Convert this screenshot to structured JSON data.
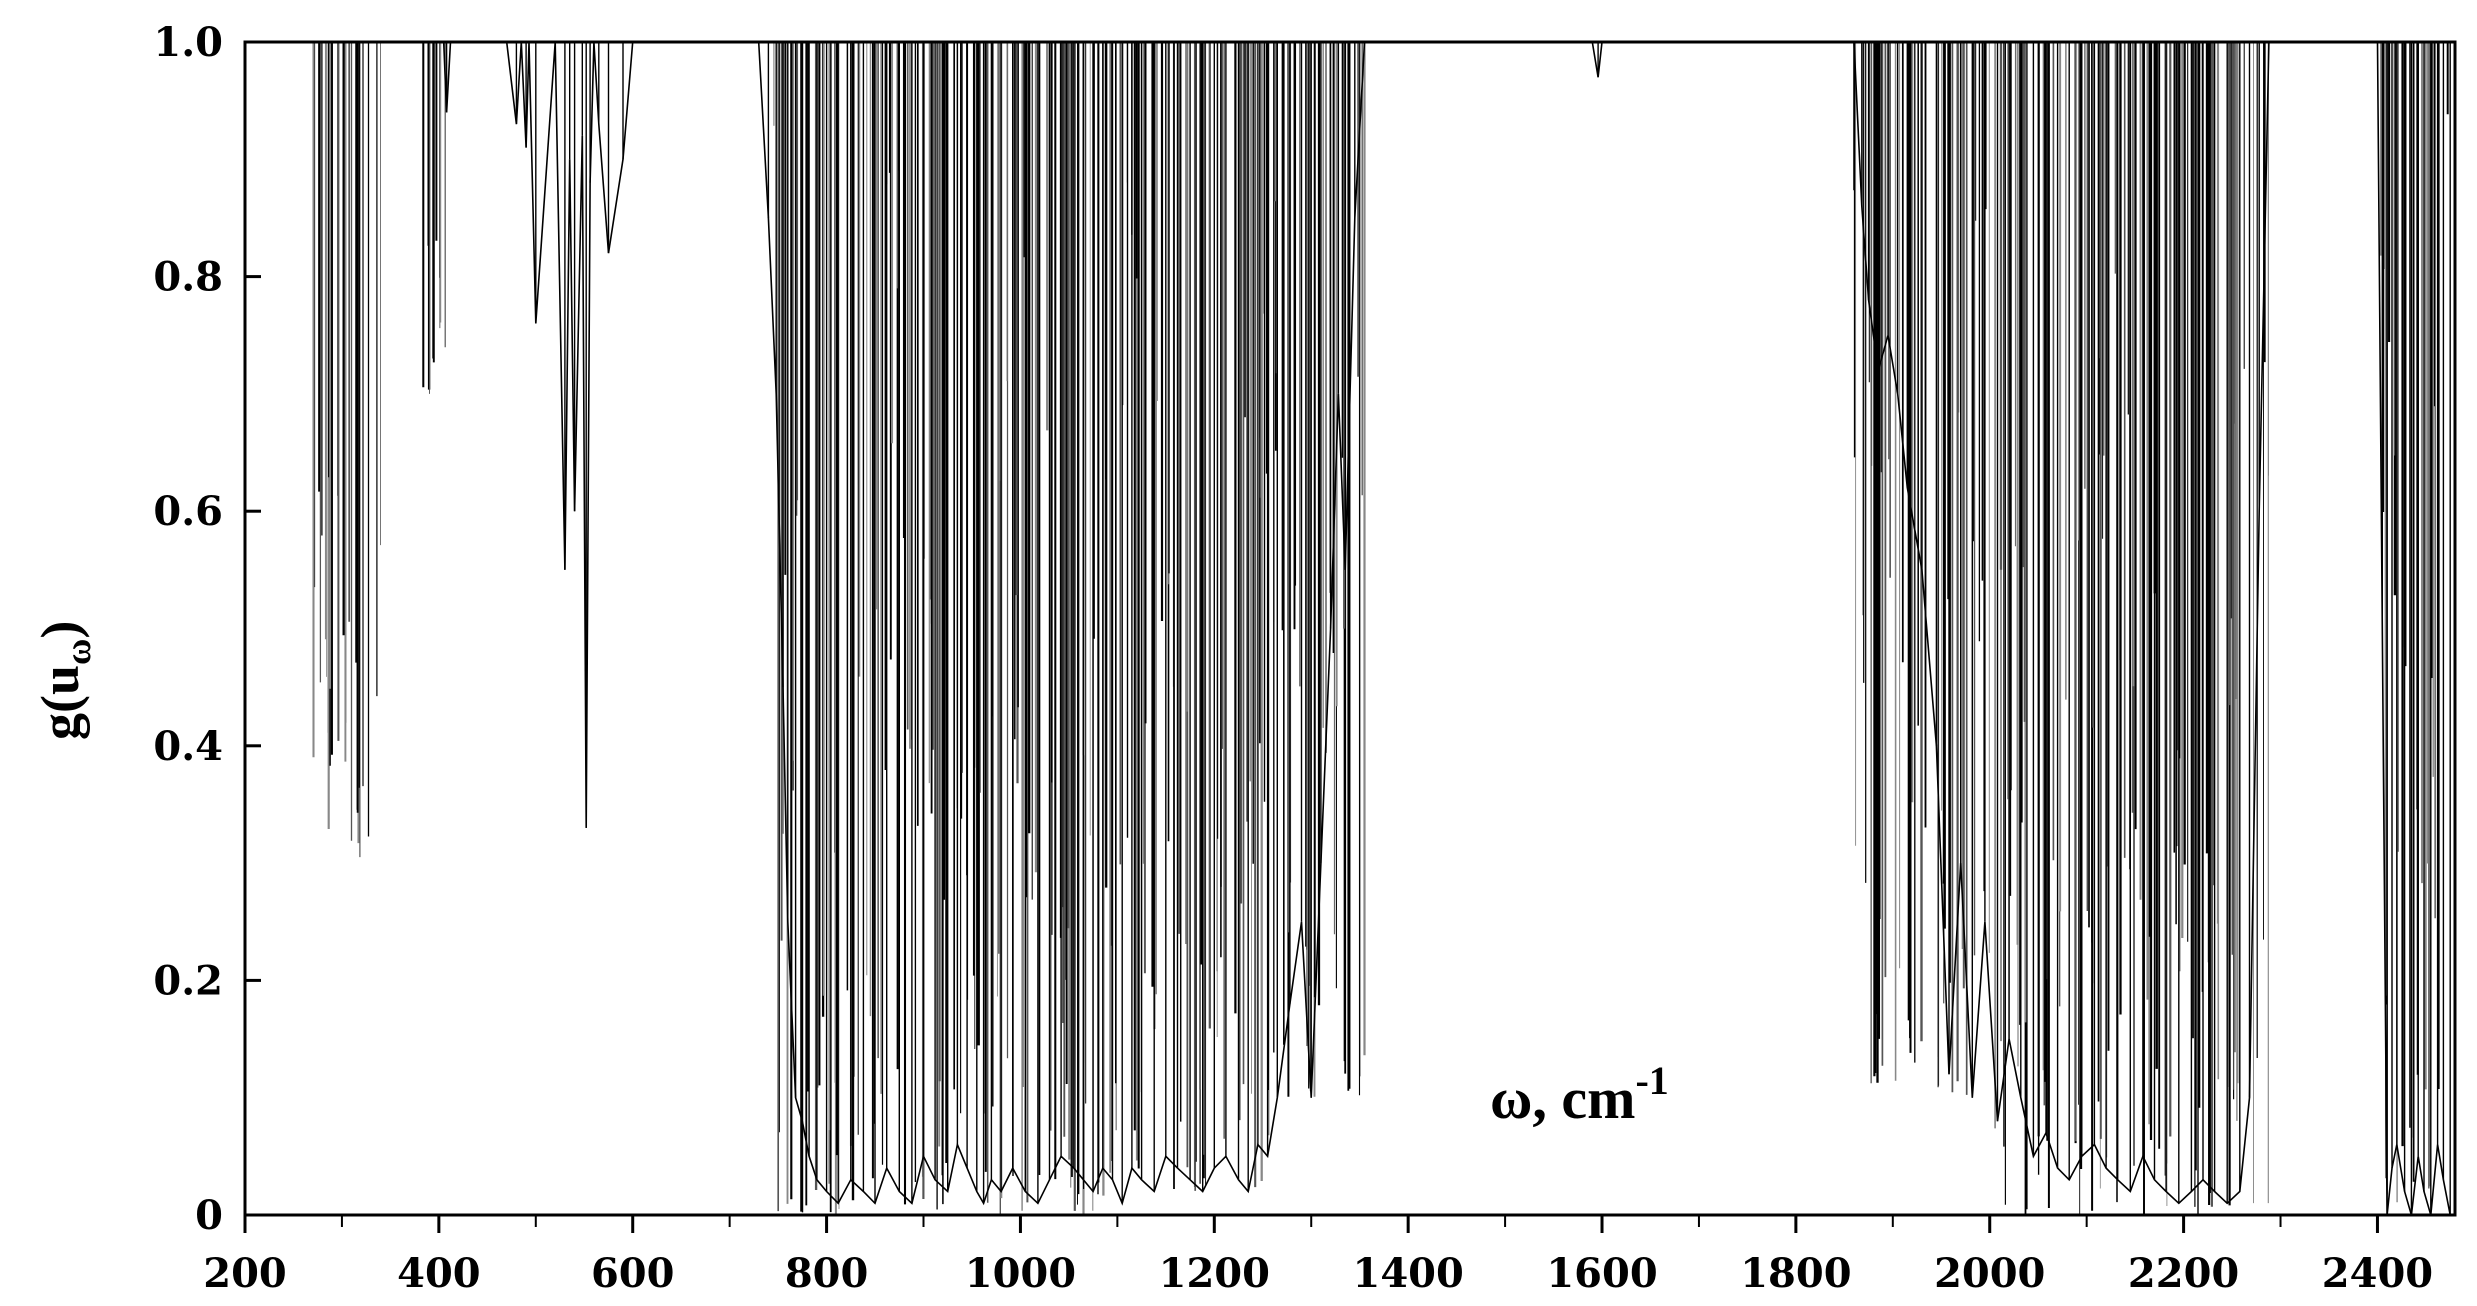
{
  "chart_data": {
    "type": "line",
    "title": "",
    "xlabel": "ω, cm",
    "xlabel_superscript": "-1",
    "ylabel_main": "g(u",
    "ylabel_sub": "ω",
    "ylabel_close": ")",
    "xlim": [
      200,
      2480
    ],
    "ylim": [
      0,
      1.0
    ],
    "x_ticks": [
      {
        "value": 200,
        "label": "200"
      },
      {
        "value": 400,
        "label": "400"
      },
      {
        "value": 600,
        "label": "600"
      },
      {
        "value": 800,
        "label": "800"
      },
      {
        "value": 1000,
        "label": "1000"
      },
      {
        "value": 1200,
        "label": "1200"
      },
      {
        "value": 1400,
        "label": "1400"
      },
      {
        "value": 1600,
        "label": "1600"
      },
      {
        "value": 1800,
        "label": "1800"
      },
      {
        "value": 2000,
        "label": "2000"
      },
      {
        "value": 2200,
        "label": "2200"
      },
      {
        "value": 2400,
        "label": "2400"
      }
    ],
    "x_minor_step": 100,
    "y_ticks": [
      {
        "value": 0,
        "label": "0"
      },
      {
        "value": 0.2,
        "label": "0.2"
      },
      {
        "value": 0.4,
        "label": "0.4"
      },
      {
        "value": 0.6,
        "label": "0.6"
      },
      {
        "value": 0.8,
        "label": "0.8"
      },
      {
        "value": 1.0,
        "label": "1.0"
      }
    ],
    "grid": false,
    "legend": "none",
    "colors": {
      "line": "#000000",
      "fill": "#000000",
      "axis": "#000000",
      "background": "#ffffff"
    },
    "series": [
      {
        "description_free": true,
        "x": [
          200,
          405,
          408,
          412,
          470,
          480,
          485,
          490,
          493,
          500,
          520,
          530,
          535,
          540,
          548,
          552,
          556,
          560,
          565,
          575,
          590,
          600,
          610,
          730,
          740,
          748,
          755,
          760,
          768,
          775,
          782,
          790,
          800,
          812,
          825,
          838,
          850,
          862,
          875,
          888,
          900,
          912,
          925,
          935,
          945,
          955,
          962,
          970,
          980,
          992,
          1005,
          1018,
          1030,
          1042,
          1055,
          1065,
          1075,
          1085,
          1095,
          1105,
          1115,
          1125,
          1138,
          1150,
          1162,
          1175,
          1188,
          1200,
          1212,
          1225,
          1235,
          1245,
          1255,
          1265,
          1278,
          1290,
          1300,
          1310,
          1320,
          1328,
          1335,
          1345,
          1355,
          1590,
          1596,
          1600,
          1860,
          1868,
          1875,
          1885,
          1895,
          1905,
          1915,
          1930,
          1945,
          1958,
          1970,
          1982,
          1995,
          2008,
          2020,
          2032,
          2045,
          2058,
          2070,
          2082,
          2095,
          2108,
          2120,
          2132,
          2145,
          2158,
          2170,
          2182,
          2195,
          2208,
          2220,
          2232,
          2245,
          2258,
          2268,
          2278,
          2288,
          2400,
          2405,
          2410,
          2415,
          2420,
          2428,
          2435,
          2442,
          2448,
          2455,
          2462,
          2468,
          2475
        ],
        "y": [
          1.0,
          1.0,
          0.94,
          1.0,
          1.0,
          0.93,
          1.0,
          0.91,
          1.0,
          0.76,
          1.0,
          0.55,
          0.9,
          0.6,
          0.92,
          0.33,
          0.88,
          1.0,
          0.93,
          0.82,
          0.9,
          1.0,
          1.0,
          1.0,
          0.85,
          0.7,
          0.45,
          0.25,
          0.1,
          0.08,
          0.05,
          0.03,
          0.02,
          0.01,
          0.03,
          0.02,
          0.01,
          0.04,
          0.02,
          0.01,
          0.05,
          0.03,
          0.02,
          0.06,
          0.04,
          0.02,
          0.01,
          0.03,
          0.02,
          0.04,
          0.02,
          0.01,
          0.03,
          0.05,
          0.04,
          0.03,
          0.02,
          0.04,
          0.03,
          0.01,
          0.04,
          0.03,
          0.02,
          0.05,
          0.04,
          0.03,
          0.02,
          0.04,
          0.05,
          0.03,
          0.02,
          0.06,
          0.05,
          0.1,
          0.18,
          0.25,
          0.1,
          0.3,
          0.5,
          0.7,
          0.55,
          0.85,
          1.0,
          1.0,
          0.97,
          1.0,
          1.0,
          0.86,
          0.78,
          0.72,
          0.75,
          0.7,
          0.62,
          0.55,
          0.4,
          0.12,
          0.3,
          0.1,
          0.25,
          0.08,
          0.15,
          0.1,
          0.05,
          0.07,
          0.04,
          0.03,
          0.05,
          0.06,
          0.04,
          0.03,
          0.02,
          0.05,
          0.03,
          0.02,
          0.01,
          0.02,
          0.03,
          0.02,
          0.01,
          0.02,
          0.1,
          0.6,
          1.0,
          1.0,
          0.5,
          0.0,
          0.04,
          0.06,
          0.02,
          0.0,
          0.05,
          0.02,
          0.0,
          0.06,
          0.03,
          0.0
        ]
      }
    ],
    "dense_bands": [
      {
        "from": 270,
        "to": 340,
        "min_depth": 0.3
      },
      {
        "from": 380,
        "to": 410,
        "min_depth": 0.7
      },
      {
        "from": 740,
        "to": 870,
        "min_depth": 0.0
      },
      {
        "from": 870,
        "to": 1000,
        "min_depth": 0.0
      },
      {
        "from": 1000,
        "to": 1110,
        "min_depth": 0.0
      },
      {
        "from": 1110,
        "to": 1260,
        "min_depth": 0.02
      },
      {
        "from": 1260,
        "to": 1355,
        "min_depth": 0.1
      },
      {
        "from": 1860,
        "to": 1990,
        "min_depth": 0.1
      },
      {
        "from": 1990,
        "to": 2130,
        "min_depth": 0.0
      },
      {
        "from": 2130,
        "to": 2290,
        "min_depth": 0.0
      },
      {
        "from": 2400,
        "to": 2475,
        "min_depth": 0.0
      }
    ]
  }
}
